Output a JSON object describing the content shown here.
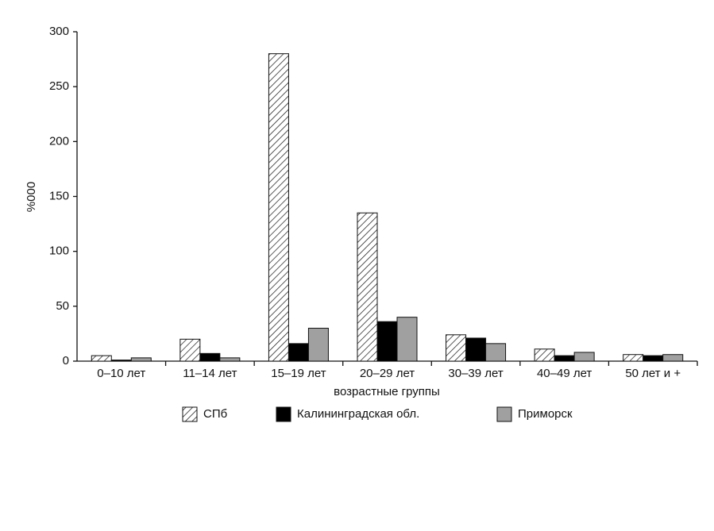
{
  "chart_data": {
    "type": "bar",
    "x_label": "возрастные группы",
    "y_label": "%000",
    "categories": [
      "0–10 лет",
      "11–14 лет",
      "15–19 лет",
      "20–29 лет",
      "30–39 лет",
      "40–49 лет",
      "50 лет и +"
    ],
    "series": [
      {
        "name": "СПб",
        "color": "#ffffff",
        "hatch": true,
        "values": [
          5,
          20,
          280,
          135,
          24,
          11,
          6
        ]
      },
      {
        "name": "Калининградская обл.",
        "color": "#000000",
        "values": [
          1,
          7,
          16,
          36,
          21,
          5,
          5
        ]
      },
      {
        "name": "Приморск",
        "color": "#a0a0a0",
        "values": [
          3,
          3,
          30,
          40,
          16,
          8,
          6
        ]
      }
    ],
    "ylim": [
      0,
      300
    ],
    "yticks": [
      0,
      50,
      100,
      150,
      200,
      250,
      300
    ],
    "grid": false,
    "legend": "bottom"
  }
}
